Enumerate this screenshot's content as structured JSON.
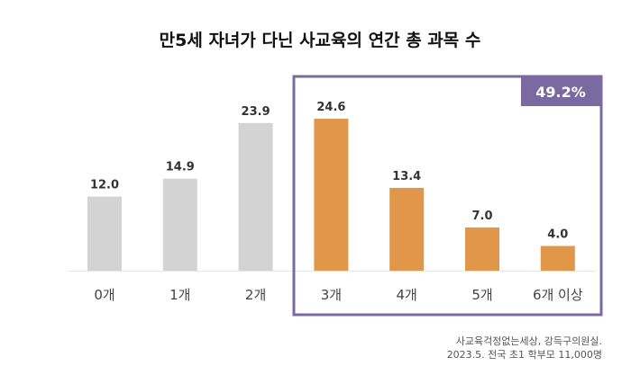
{
  "chart_data": {
    "type": "bar",
    "title": "만5세 자녀가 다닌 사교육의 연간 총 과목 수",
    "categories": [
      "0개",
      "1개",
      "2개",
      "3개",
      "4개",
      "5개",
      "6개 이상"
    ],
    "values": [
      12.0,
      14.9,
      23.9,
      24.6,
      13.4,
      7.0,
      4.0
    ],
    "value_labels": [
      "12.0",
      "14.9",
      "23.9",
      "24.6",
      "13.4",
      "7.0",
      "4.0"
    ],
    "highlight": {
      "categories": [
        "3개",
        "4개",
        "5개",
        "6개 이상"
      ],
      "label": "49.2%"
    },
    "colors": {
      "default": "#d3d3d3",
      "highlight": "#e0974a",
      "box": "#7b6aa1"
    },
    "ylim": [
      0,
      28
    ],
    "grid": false,
    "legend": "none"
  },
  "source": {
    "line1": "사교육걱정없는세상, 강득구의원실.",
    "line2": "2023.5. 전국 초1 학부모 11,000명"
  }
}
